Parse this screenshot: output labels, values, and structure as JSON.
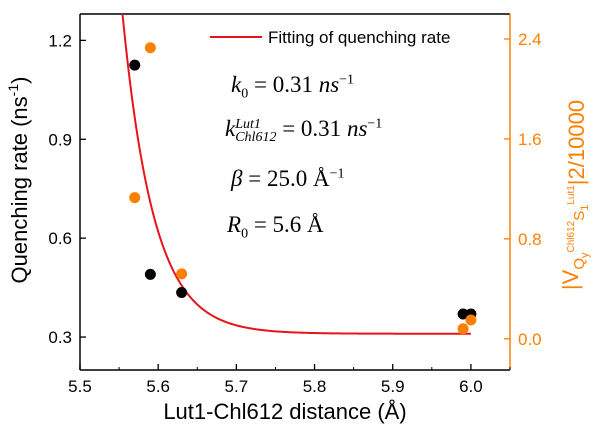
{
  "chart_data": {
    "type": "scatter",
    "title": "",
    "xlabel": "Lut1-Chl612 distance (Å)",
    "ylabel": "Quenching rate (ns-1)",
    "ylabel_main": "Quenching rate (ns",
    "ylabel_sup": "-1",
    "ylabel_close": ")",
    "y2label": "|VQyChl612S1Lut1|2/10000",
    "y2label_parts": {
      "open": "|V",
      "q": "Q",
      "y": "y",
      "chl": "Chl612",
      "s": "S",
      "one": "1",
      "lut": "Lut1",
      "close": "|",
      "two": "2",
      "tail": "/10000"
    },
    "xlim": [
      5.5,
      6.05
    ],
    "ylim": [
      0.2,
      1.28
    ],
    "y2lim": [
      -0.25,
      2.6
    ],
    "x_ticks": [
      5.5,
      5.6,
      5.7,
      5.8,
      5.9,
      6.0
    ],
    "x_tick_labels": [
      "5.5",
      "5.6",
      "5.7",
      "5.8",
      "5.9",
      "6.0"
    ],
    "y_ticks": [
      0.3,
      0.6,
      0.9,
      1.2
    ],
    "y_tick_labels": [
      "0.3",
      "0.6",
      "0.9",
      "1.2"
    ],
    "y2_ticks": [
      0.0,
      0.8,
      1.6,
      2.4
    ],
    "y2_tick_labels": [
      "0.0",
      "0.8",
      "1.6",
      "2.4"
    ],
    "grid": false,
    "legend": {
      "position": "top-right",
      "label": "Fitting of quenching rate"
    },
    "series": [
      {
        "name": "Quenching rate",
        "axis": "left",
        "color": "#000000",
        "x": [
          5.57,
          5.59,
          5.63,
          5.99,
          6.0
        ],
        "y": [
          1.125,
          0.49,
          0.435,
          0.37,
          0.37
        ]
      },
      {
        "name": "|V|^2/10000",
        "axis": "right",
        "color": "#ff8000",
        "x": [
          5.57,
          5.59,
          5.63,
          5.99,
          6.0
        ],
        "y": [
          1.13,
          2.33,
          0.52,
          0.08,
          0.15
        ]
      },
      {
        "name": "Fitting of quenching rate",
        "axis": "left",
        "color": "#e8141b",
        "type": "line",
        "model": {
          "k0": 0.31,
          "k": 0.31,
          "beta": 25.0,
          "R0": 5.6
        }
      }
    ],
    "annotations": {
      "k0": {
        "sym": "k",
        "sub": "0",
        "value": "= 0.31",
        "unit": "ns",
        "exp": "−1"
      },
      "k": {
        "sym": "k",
        "sup": "Lut1",
        "sub": "Chl612",
        "value": "= 0.31",
        "unit": "ns",
        "exp": "−1"
      },
      "beta": {
        "sym": "β",
        "value": "= 25.0 Å",
        "exp": "−1"
      },
      "r0": {
        "sym": "R",
        "sub": "0",
        "value": "= 5.6 Å"
      }
    }
  },
  "colors": {
    "left_axis": "#000000",
    "right_axis": "#ff8000",
    "fit": "#e8141b"
  }
}
